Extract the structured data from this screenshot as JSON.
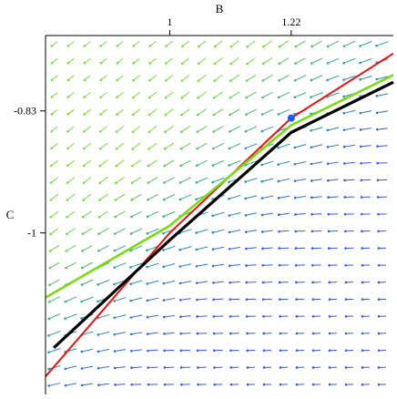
{
  "chart_data": {
    "type": "phase-portrait",
    "xlabel": "B",
    "ylabel": "C",
    "x_axis_position": "top",
    "y_axis_position": "left",
    "xlim": [
      0.775,
      1.405
    ],
    "ylim": [
      -1.225,
      -0.725
    ],
    "xticks": [
      {
        "value": 1,
        "label": "1"
      },
      {
        "value": 1.22,
        "label": "1.22"
      }
    ],
    "yticks": [
      {
        "value": -0.83,
        "label": "-0.83"
      },
      {
        "value": -1,
        "label": "-1"
      }
    ],
    "vector_field": {
      "grid": "21 x 21 evenly spaced arrows",
      "colors": [
        "#3a57f0",
        "#2aa0a0",
        "#7ddc3a"
      ]
    },
    "curves": [
      {
        "color": "#ee1111",
        "points": [
          [
            0.775,
            -1.2
          ],
          [
            1.0,
            -1.0
          ],
          [
            1.22,
            -0.84
          ],
          [
            1.405,
            -0.75
          ]
        ]
      },
      {
        "color": "#77dd11",
        "points": [
          [
            0.775,
            -1.09
          ],
          [
            1.0,
            -0.99
          ],
          [
            1.22,
            -0.85
          ],
          [
            1.405,
            -0.78
          ]
        ]
      },
      {
        "color": "#000000",
        "points": [
          [
            0.79,
            -1.16
          ],
          [
            1.0,
            -1.01
          ],
          [
            1.22,
            -0.86
          ],
          [
            1.405,
            -0.79
          ]
        ]
      }
    ],
    "equilibrium": {
      "x": 1.22,
      "y": -0.84,
      "color": "#1a5cff"
    }
  }
}
